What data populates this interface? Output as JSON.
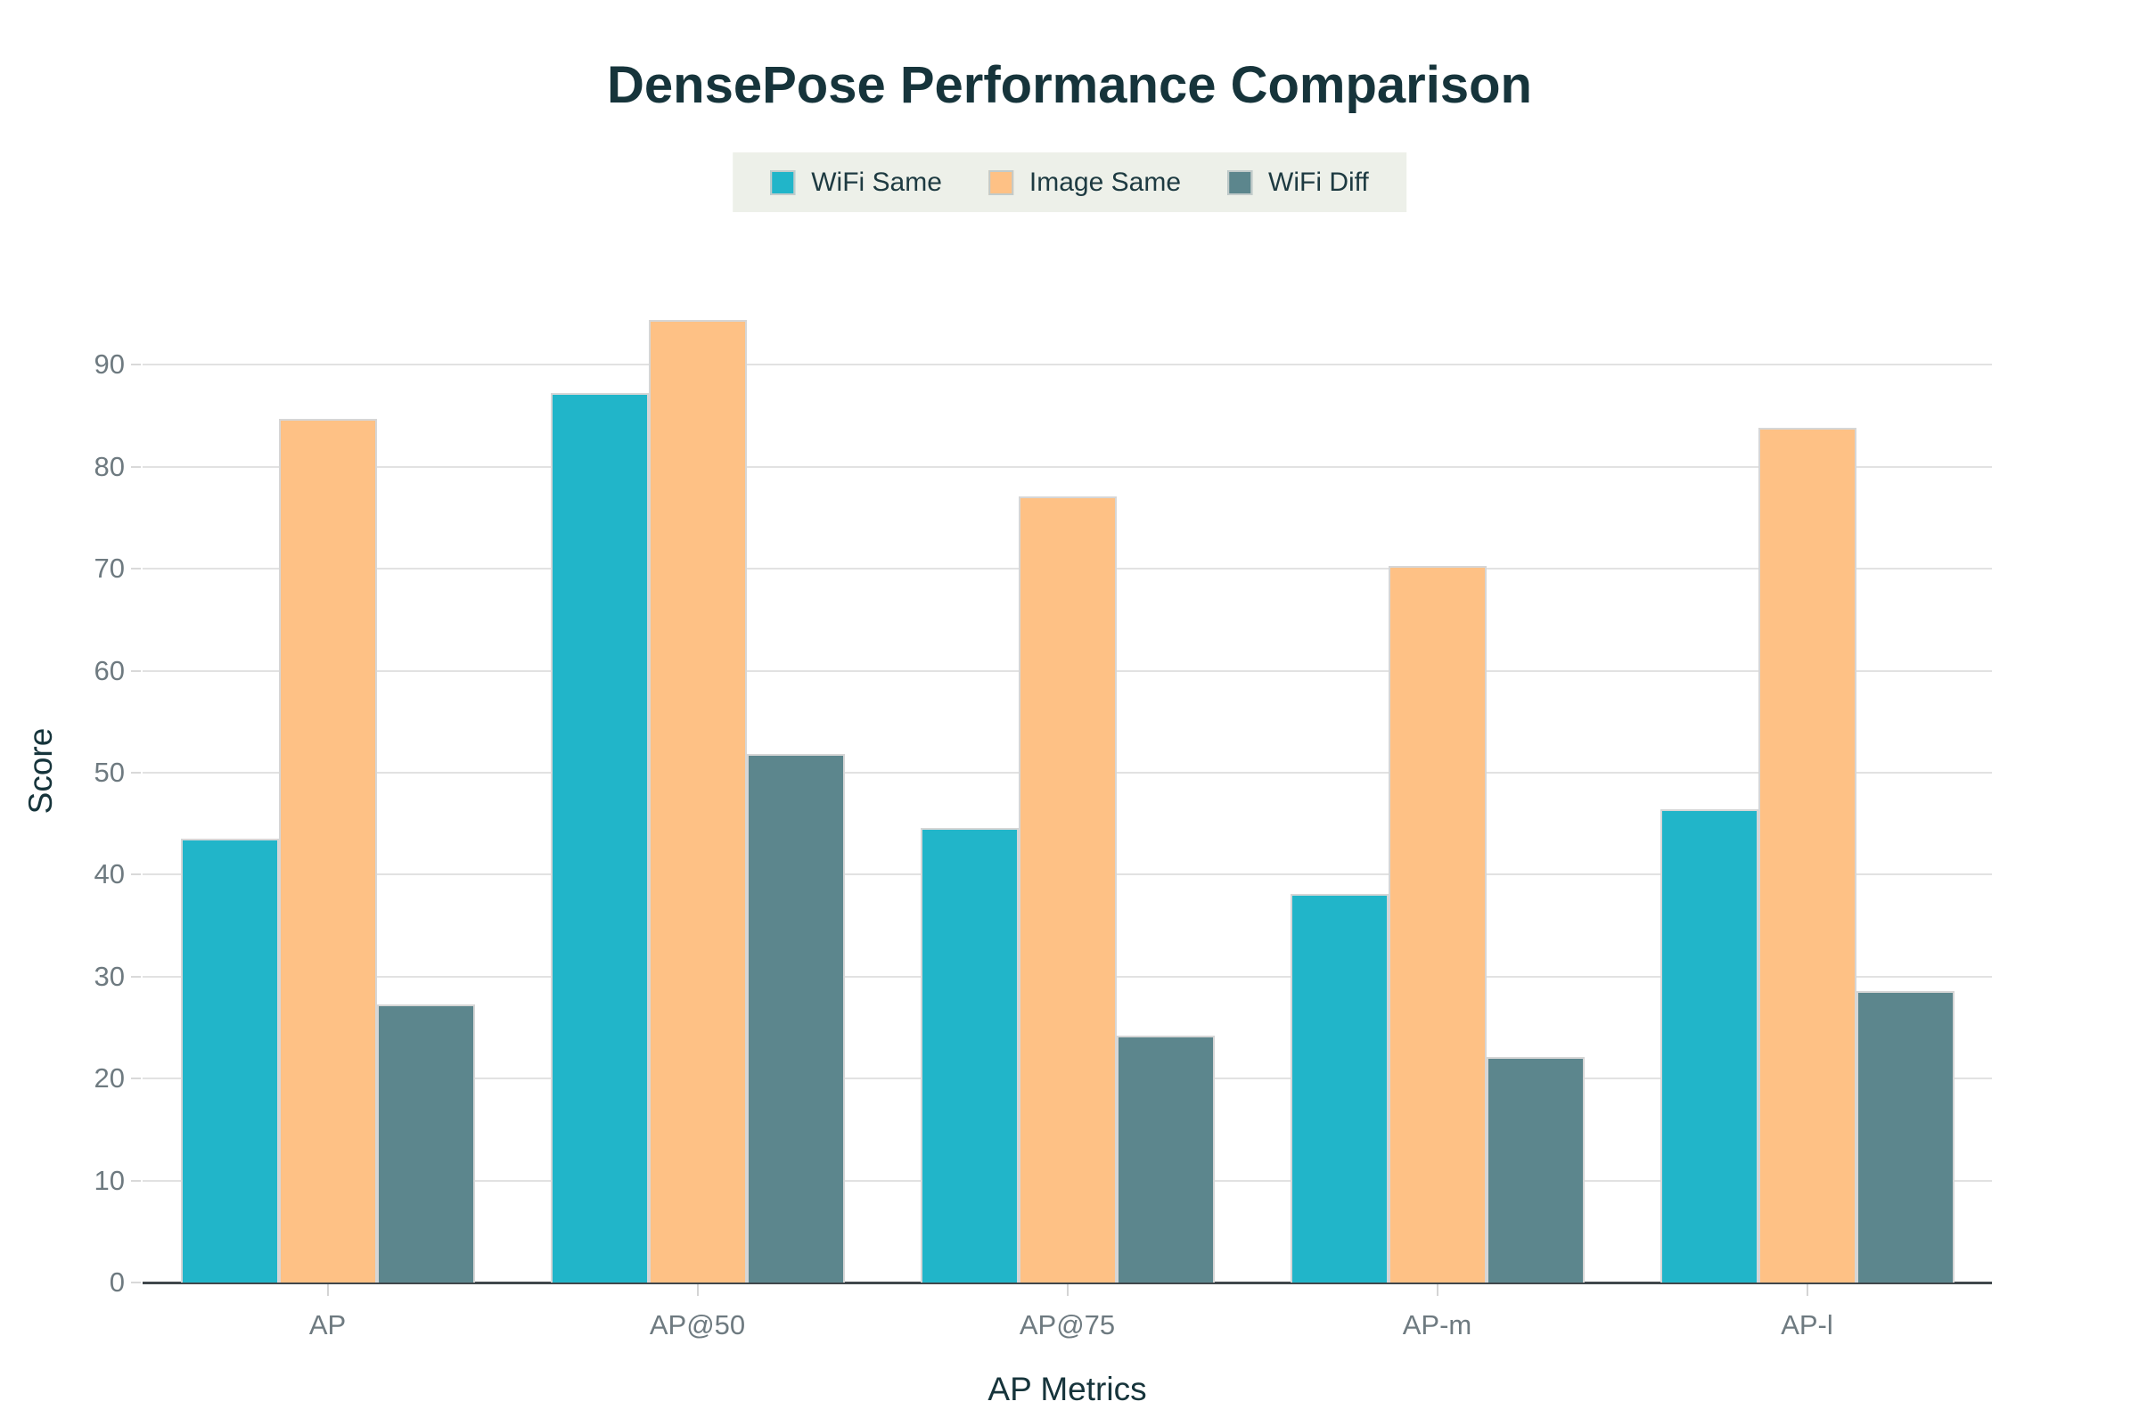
{
  "title": "DensePose Performance Comparison",
  "colors": {
    "wifi_same": "#21b5c9",
    "image_same": "#fec185",
    "wifi_diff": "#5c868d",
    "title_text": "#16343b",
    "tick_text": "#6e7a80",
    "gridline": "#e2e2e2",
    "axis_line": "#40474b",
    "legend_background": "#edf0e9",
    "bar_border": "#d6d6d6"
  },
  "legend": {
    "items": [
      {
        "label": "WiFi Same",
        "color": "#21b5c9"
      },
      {
        "label": "Image Same",
        "color": "#fec185"
      },
      {
        "label": "WiFi Diff",
        "color": "#5c868d"
      }
    ]
  },
  "axes": {
    "x_title": "AP Metrics",
    "y_title": "Score"
  },
  "chart_data": {
    "type": "bar",
    "title": "DensePose Performance Comparison",
    "xlabel": "AP Metrics",
    "ylabel": "Score",
    "categories": [
      "AP",
      "AP@50",
      "AP@75",
      "AP-m",
      "AP-l"
    ],
    "series": [
      {
        "name": "WiFi Same",
        "color": "#21b5c9",
        "values": [
          43.5,
          87.2,
          44.6,
          38.1,
          46.4
        ]
      },
      {
        "name": "Image Same",
        "color": "#fec185",
        "values": [
          84.7,
          94.4,
          77.1,
          70.3,
          83.8
        ]
      },
      {
        "name": "WiFi Diff",
        "color": "#5c868d",
        "values": [
          27.3,
          51.8,
          24.2,
          22.1,
          28.6
        ]
      }
    ],
    "ylim": [
      0,
      100
    ],
    "yticks": [
      0,
      10,
      20,
      30,
      40,
      50,
      60,
      70,
      80,
      90
    ],
    "grid": true,
    "legend_position": "top"
  }
}
